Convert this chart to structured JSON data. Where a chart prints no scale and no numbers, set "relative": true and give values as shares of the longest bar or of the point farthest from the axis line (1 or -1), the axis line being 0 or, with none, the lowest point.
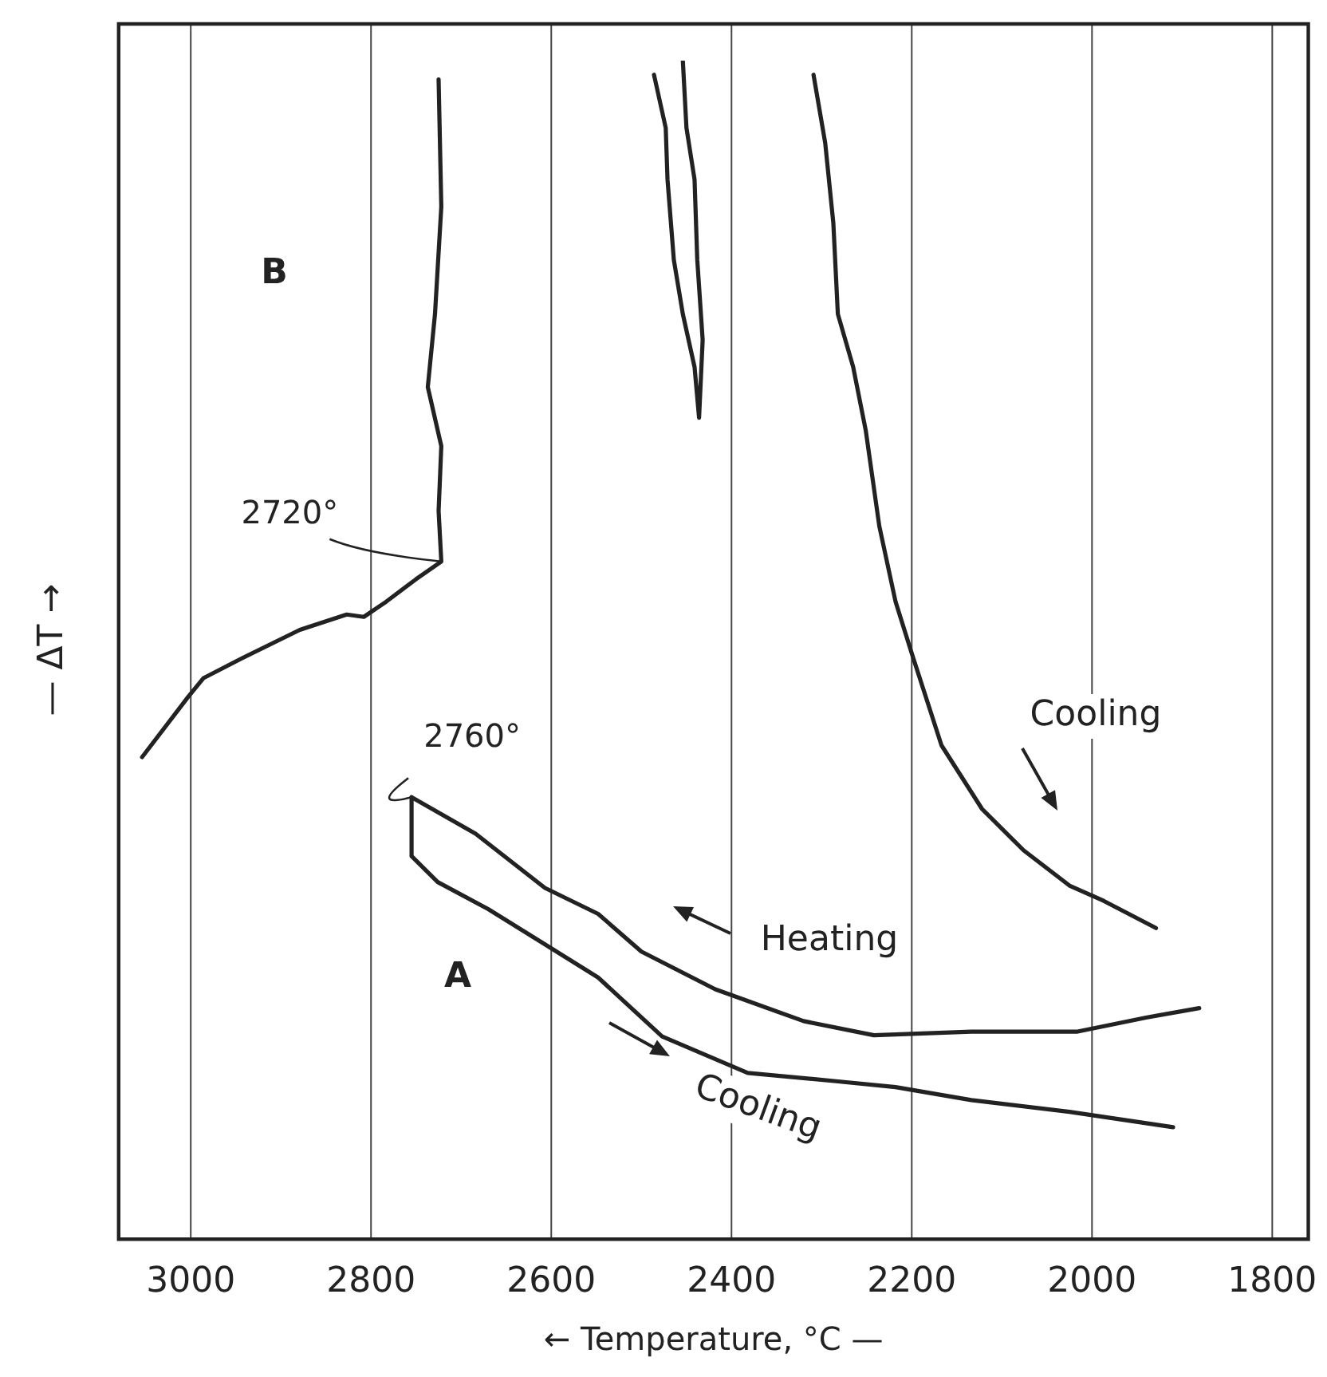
{
  "chart_data": {
    "type": "line",
    "xlabel": "← Temperature, °C —",
    "ylabel": "— ΔT →",
    "relative": true,
    "xlim": [
      3080,
      1760
    ],
    "xticks": [
      3000,
      2800,
      2600,
      2400,
      2200,
      2000,
      1800
    ],
    "grid": "x",
    "legend": false,
    "marker": "none",
    "line_style": "solid",
    "series": [
      {
        "color": "#222222",
        "x": [
          3054,
          3003,
          2986,
          2943,
          2879,
          2827,
          2808,
          2783,
          2750,
          2722,
          2725,
          2722,
          2737,
          2729,
          2722,
          2725
        ],
        "values": [
          0.409,
          0.46,
          0.476,
          0.493,
          0.517,
          0.53,
          0.528,
          0.541,
          0.56,
          0.575,
          0.618,
          0.673,
          0.723,
          0.785,
          0.876,
          0.984
        ]
      },
      {
        "color": "#222222",
        "x": [
          2486,
          2473,
          2471,
          2464,
          2454,
          2441,
          2436,
          2432,
          2438,
          2441,
          2450,
          2454
        ],
        "values": [
          0.988,
          0.943,
          0.899,
          0.831,
          0.785,
          0.74,
          0.697,
          0.763,
          0.831,
          0.899,
          0.943,
          1
        ]
      },
      {
        "color": "#222222",
        "x": [
          2309,
          2296,
          2287,
          2282,
          2265,
          2251,
          2236,
          2218,
          2200,
          2167,
          2122,
          2076,
          2025,
          1987,
          1929
        ],
        "values": [
          0.988,
          0.93,
          0.862,
          0.785,
          0.74,
          0.686,
          0.605,
          0.541,
          0.497,
          0.419,
          0.365,
          0.33,
          0.3,
          0.287,
          0.264
        ]
      },
      {
        "color": "#222222",
        "x": [
          2755,
          2684,
          2607,
          2548,
          2500,
          2418,
          2320,
          2242,
          2134,
          2017,
          1940,
          1881
        ],
        "values": [
          0.375,
          0.344,
          0.298,
          0.276,
          0.244,
          0.212,
          0.185,
          0.173,
          0.176,
          0.176,
          0.188,
          0.196
        ]
      },
      {
        "color": "#222222",
        "x": [
          2755,
          2755,
          2726,
          2670,
          2613,
          2548,
          2477,
          2382,
          2284,
          2218,
          2134,
          2025,
          1910
        ],
        "values": [
          0.375,
          0.325,
          0.303,
          0.28,
          0.253,
          0.222,
          0.172,
          0.141,
          0.134,
          0.129,
          0.118,
          0.108,
          0.095
        ]
      }
    ],
    "annotations": [
      "B",
      {
        "text": "2720°",
        "x": 2722,
        "y": 0.575
      },
      {
        "text": "2760°",
        "x": 2755,
        "y": 0.375
      },
      "Cooling",
      "Heating",
      "A",
      "Cooling"
    ]
  }
}
